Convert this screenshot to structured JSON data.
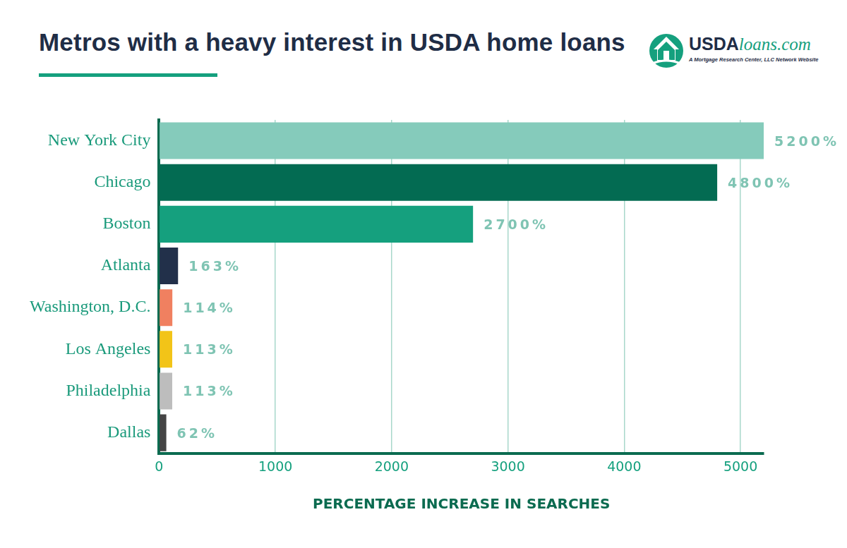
{
  "chart_data": {
    "type": "bar",
    "orientation": "horizontal",
    "title": "Metros with a heavy interest in USDA home loans",
    "x_label": "PERCENTAGE INCREASE IN SEARCHES",
    "categories": [
      "New York City",
      "Chicago",
      "Boston",
      "Atlanta",
      "Washington, D.C.",
      "Los Angeles",
      "Philadelphia",
      "Dallas"
    ],
    "values": [
      5200,
      4800,
      2700,
      163,
      114,
      113,
      113,
      62
    ],
    "value_labels": [
      "5200%",
      "4800%",
      "2700%",
      "163%",
      "114%",
      "113%",
      "113%",
      "62%"
    ],
    "colors": [
      "#85cbbb",
      "#036b52",
      "#15a07e",
      "#22304a",
      "#f08060",
      "#f2c418",
      "#bdbdbd",
      "#444444"
    ],
    "xlim": [
      0,
      5200
    ],
    "xticks": [
      0,
      1000,
      2000,
      3000,
      4000,
      5000
    ],
    "grid": true,
    "data_labels": true,
    "legend": false
  },
  "logo": {
    "text": "USDAloans.com",
    "tagline": "A Mortgage Research Center, LLC Network Website"
  }
}
